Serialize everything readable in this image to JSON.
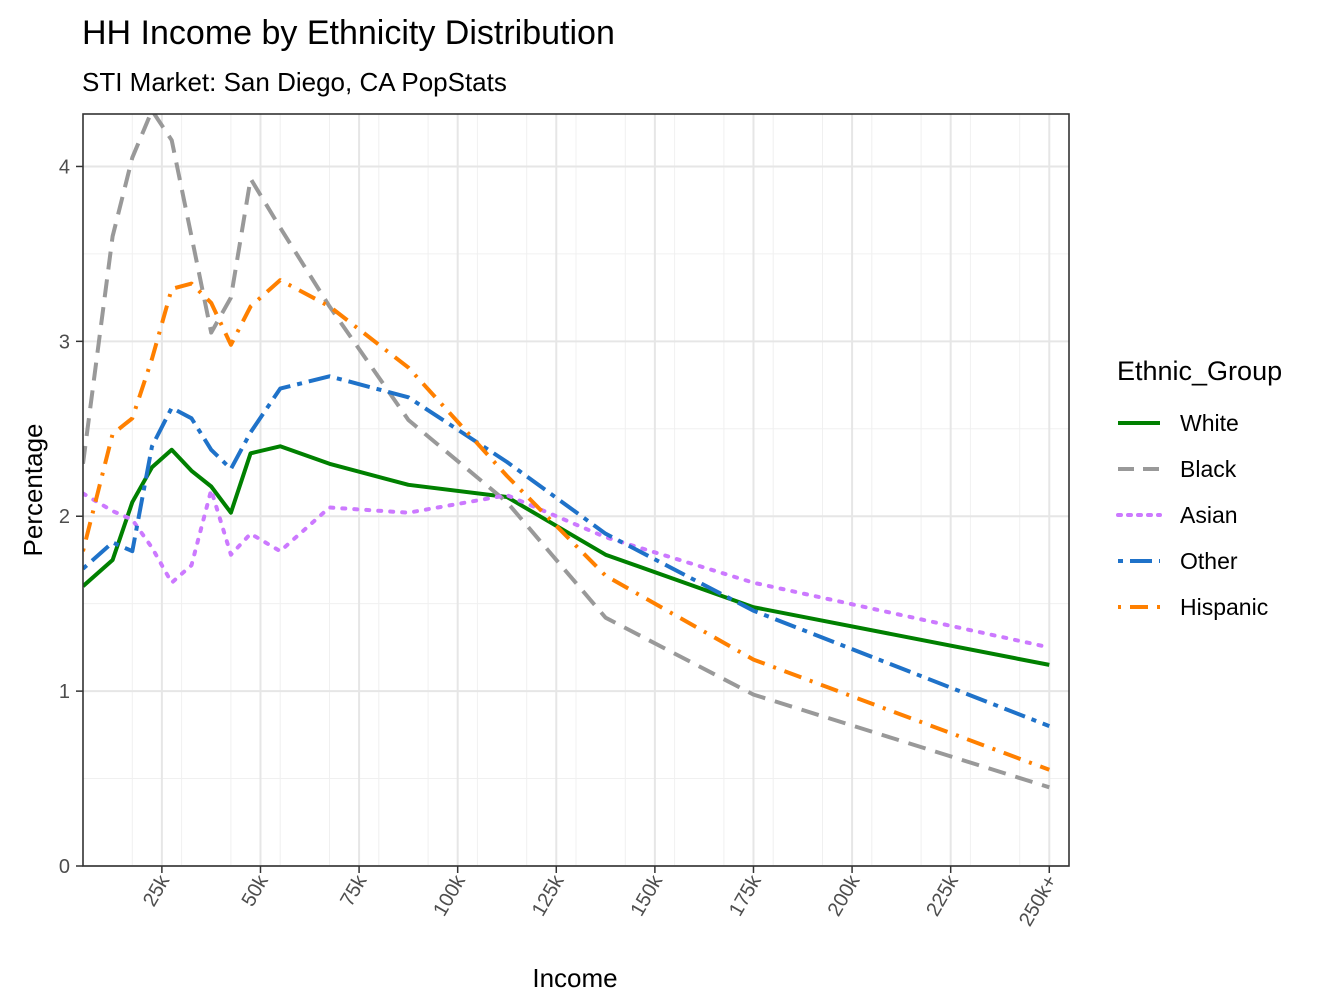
{
  "chart_data": {
    "type": "line",
    "title": "HH Income by Ethnicity Distribution",
    "subtitle": "STI Market: San Diego, CA PopStats",
    "xlabel": "Income",
    "ylabel": "Percentage",
    "xlim": [
      5000,
      255000
    ],
    "ylim": [
      0,
      4.3
    ],
    "x_ticks": [
      {
        "value": 25000,
        "label": "25k"
      },
      {
        "value": 50000,
        "label": "50k"
      },
      {
        "value": 75000,
        "label": "75k"
      },
      {
        "value": 100000,
        "label": "100k"
      },
      {
        "value": 125000,
        "label": "125k"
      },
      {
        "value": 150000,
        "label": "150k"
      },
      {
        "value": 175000,
        "label": "175k"
      },
      {
        "value": 200000,
        "label": "200k"
      },
      {
        "value": 225000,
        "label": "225k"
      },
      {
        "value": 250000,
        "label": "250k+"
      }
    ],
    "y_ticks": [
      {
        "value": 0,
        "label": "0"
      },
      {
        "value": 1,
        "label": "1"
      },
      {
        "value": 2,
        "label": "2"
      },
      {
        "value": 3,
        "label": "3"
      },
      {
        "value": 4,
        "label": "4"
      }
    ],
    "grid": true,
    "legend_title": "Ethnic_Group",
    "legend_position": "right",
    "series": [
      {
        "name": "White",
        "color": "#008000",
        "dash": "solid",
        "points": [
          [
            5000,
            1.6
          ],
          [
            12500,
            1.75
          ],
          [
            17500,
            2.08
          ],
          [
            22500,
            2.28
          ],
          [
            27500,
            2.38
          ],
          [
            32500,
            2.26
          ],
          [
            37500,
            2.17
          ],
          [
            42500,
            2.02
          ],
          [
            47500,
            2.36
          ],
          [
            55000,
            2.4
          ],
          [
            67500,
            2.3
          ],
          [
            87500,
            2.18
          ],
          [
            112500,
            2.11
          ],
          [
            137500,
            1.78
          ],
          [
            175000,
            1.48
          ],
          [
            250000,
            1.15
          ]
        ]
      },
      {
        "name": "Black",
        "color": "#999999",
        "dash": "dashed",
        "points": [
          [
            5000,
            2.3
          ],
          [
            12500,
            3.6
          ],
          [
            17500,
            4.05
          ],
          [
            22500,
            4.32
          ],
          [
            27500,
            4.15
          ],
          [
            32500,
            3.6
          ],
          [
            37500,
            3.05
          ],
          [
            42500,
            3.25
          ],
          [
            47500,
            3.93
          ],
          [
            55000,
            3.65
          ],
          [
            67500,
            3.2
          ],
          [
            87500,
            2.55
          ],
          [
            112500,
            2.08
          ],
          [
            137500,
            1.42
          ],
          [
            175000,
            0.98
          ],
          [
            250000,
            0.45
          ]
        ]
      },
      {
        "name": "Asian",
        "color": "#cc79ff",
        "dash": "dotted",
        "points": [
          [
            5000,
            2.13
          ],
          [
            12500,
            2.03
          ],
          [
            17500,
            1.98
          ],
          [
            22500,
            1.82
          ],
          [
            27500,
            1.62
          ],
          [
            32500,
            1.72
          ],
          [
            37500,
            2.15
          ],
          [
            42500,
            1.78
          ],
          [
            47500,
            1.9
          ],
          [
            55000,
            1.8
          ],
          [
            67500,
            2.05
          ],
          [
            87500,
            2.02
          ],
          [
            112500,
            2.12
          ],
          [
            137500,
            1.88
          ],
          [
            175000,
            1.62
          ],
          [
            250000,
            1.25
          ]
        ]
      },
      {
        "name": "Other",
        "color": "#1f72c9",
        "dash": "dashdot",
        "points": [
          [
            5000,
            1.7
          ],
          [
            12500,
            1.85
          ],
          [
            17500,
            1.8
          ],
          [
            22500,
            2.4
          ],
          [
            27500,
            2.62
          ],
          [
            32500,
            2.56
          ],
          [
            37500,
            2.38
          ],
          [
            42500,
            2.27
          ],
          [
            47500,
            2.48
          ],
          [
            55000,
            2.73
          ],
          [
            67500,
            2.8
          ],
          [
            87500,
            2.68
          ],
          [
            112500,
            2.31
          ],
          [
            137500,
            1.9
          ],
          [
            175000,
            1.46
          ],
          [
            250000,
            0.8
          ]
        ]
      },
      {
        "name": "Hispanic",
        "color": "#ff8000",
        "dash": "longdashdot",
        "points": [
          [
            5000,
            1.8
          ],
          [
            12500,
            2.47
          ],
          [
            17500,
            2.56
          ],
          [
            22500,
            2.9
          ],
          [
            27500,
            3.3
          ],
          [
            32500,
            3.33
          ],
          [
            37500,
            3.22
          ],
          [
            42500,
            2.98
          ],
          [
            47500,
            3.2
          ],
          [
            55000,
            3.35
          ],
          [
            67500,
            3.2
          ],
          [
            87500,
            2.85
          ],
          [
            112500,
            2.23
          ],
          [
            137500,
            1.66
          ],
          [
            175000,
            1.18
          ],
          [
            250000,
            0.55
          ]
        ]
      }
    ]
  }
}
